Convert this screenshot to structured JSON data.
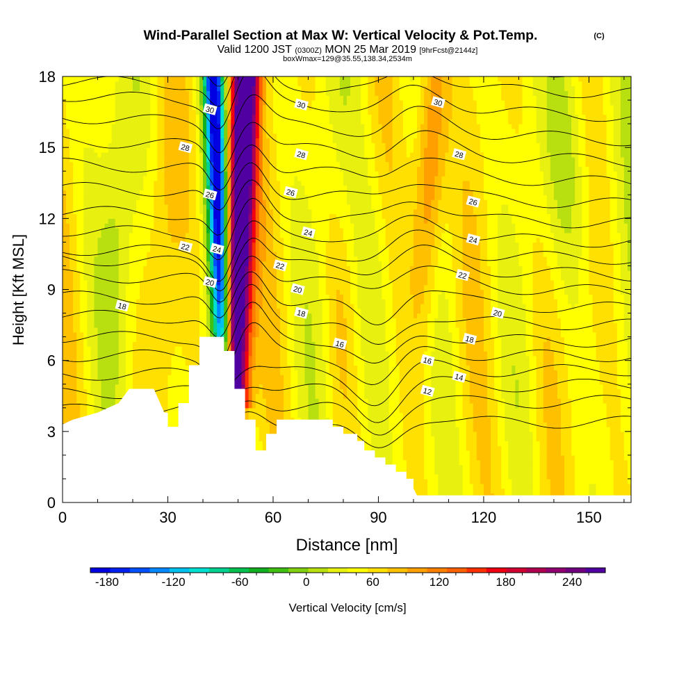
{
  "header": {
    "title": "Wind-Parallel Section at Max W: Vertical Velocity & Pot.Temp.",
    "copyright": "(C)",
    "valid_main": "Valid 1200 JST",
    "valid_utc": "(0300Z)",
    "valid_date": "MON 25 Mar 2019",
    "forecast": "[9hrFcst@2144z]",
    "box_info": "boxWmax=129@35.55,138.34,2534m"
  },
  "chart_data": {
    "type": "heatmap",
    "xlabel": "Distance [nm]",
    "ylabel": "Height [Kft MSL]",
    "xlim": [
      0,
      162
    ],
    "ylim": [
      0,
      18
    ],
    "x_ticks": [
      0,
      30,
      60,
      90,
      120,
      150
    ],
    "y_ticks": [
      0,
      3,
      6,
      9,
      12,
      15,
      18
    ],
    "colorbar": {
      "label": "Vertical Velocity [cm/s]",
      "ticks": [
        "-180",
        "-120",
        "-60",
        "0",
        "60",
        "120",
        "180",
        "240"
      ],
      "min": -195,
      "max": 270,
      "step": 15,
      "colors": [
        "#0000e0",
        "#0020f0",
        "#0050ff",
        "#0088ff",
        "#00c0f0",
        "#00e0d0",
        "#00d090",
        "#00c050",
        "#10b020",
        "#40c010",
        "#80d010",
        "#b8e010",
        "#e8f010",
        "#ffff00",
        "#ffe000",
        "#ffc000",
        "#ffa000",
        "#ff8000",
        "#ff6000",
        "#ff3000",
        "#f00010",
        "#d00030",
        "#b00050",
        "#900070",
        "#700080",
        "#5000a0"
      ]
    },
    "terrain_kft": [
      [
        0,
        3.3
      ],
      [
        3,
        3.5
      ],
      [
        10,
        3.8
      ],
      [
        16,
        4.2
      ],
      [
        19,
        4.8
      ],
      [
        26,
        4.8
      ],
      [
        29,
        3.8
      ],
      [
        30,
        3.8
      ],
      [
        30,
        3.2
      ],
      [
        33,
        3.2
      ],
      [
        33,
        3.6
      ],
      [
        33,
        4.2
      ],
      [
        36,
        4.2
      ],
      [
        36,
        5.8
      ],
      [
        39,
        5.8
      ],
      [
        39,
        7.0
      ],
      [
        46,
        7.0
      ],
      [
        46,
        6.4
      ],
      [
        49,
        6.4
      ],
      [
        49,
        4.8
      ],
      [
        52,
        4.8
      ],
      [
        52,
        3.5
      ],
      [
        55,
        3.5
      ],
      [
        55,
        2.2
      ],
      [
        58,
        2.2
      ],
      [
        58,
        2.9
      ],
      [
        61,
        2.9
      ],
      [
        61,
        3.5
      ],
      [
        77,
        3.5
      ],
      [
        77,
        3.2
      ],
      [
        80,
        3.2
      ],
      [
        80,
        2.9
      ],
      [
        84,
        2.9
      ],
      [
        84,
        2.6
      ],
      [
        86,
        2.6
      ],
      [
        86,
        2.2
      ],
      [
        89,
        2.2
      ],
      [
        89,
        1.9
      ],
      [
        92,
        1.9
      ],
      [
        92,
        1.6
      ],
      [
        95,
        1.6
      ],
      [
        95,
        1.3
      ],
      [
        98,
        1.3
      ],
      [
        98,
        1.0
      ],
      [
        100,
        1.0
      ],
      [
        100,
        0.6
      ],
      [
        101,
        0.3
      ],
      [
        162,
        0.3
      ]
    ],
    "updraft_band": [
      {
        "x_bottom": 50,
        "x_top": 52,
        "vmax": 250
      }
    ],
    "downdraft_band": [
      {
        "x_bottom": 42,
        "x_top": 43,
        "vmin": -190
      }
    ],
    "secondary_updraft": [
      {
        "x": 104,
        "vmax": 75
      }
    ],
    "isentrope_levels": [
      12,
      13,
      14,
      15,
      16,
      17,
      18,
      19,
      20,
      21,
      22,
      23,
      24,
      25,
      26,
      27,
      28,
      29,
      30,
      31
    ],
    "isentrope_heights_west_kft": [
      3.3,
      3.9,
      4.6,
      5.4,
      6.2,
      7.0,
      7.9,
      8.7,
      9.6,
      10.3,
      10.7,
      11.5,
      12.3,
      13.3,
      14.3,
      15.3,
      16.3,
      17.2,
      17.8,
      18.4
    ],
    "isentrope_heights_east_kft": [
      3.4,
      4.3,
      5.0,
      5.6,
      6.2,
      6.8,
      7.5,
      8.2,
      8.9,
      9.6,
      10.3,
      11.0,
      11.8,
      12.6,
      13.5,
      14.4,
      15.3,
      16.3,
      17.3,
      18.2
    ],
    "contour_labels": [
      {
        "text": "30",
        "x": 42,
        "y": 16.6
      },
      {
        "text": "30",
        "x": 68,
        "y": 16.8
      },
      {
        "text": "30",
        "x": 107,
        "y": 16.9
      },
      {
        "text": "28",
        "x": 35,
        "y": 15.0
      },
      {
        "text": "28",
        "x": 68,
        "y": 14.7
      },
      {
        "text": "28",
        "x": 113,
        "y": 14.7
      },
      {
        "text": "26",
        "x": 42,
        "y": 13.0
      },
      {
        "text": "26",
        "x": 65,
        "y": 13.1
      },
      {
        "text": "26",
        "x": 117,
        "y": 12.7
      },
      {
        "text": "24",
        "x": 44,
        "y": 10.7
      },
      {
        "text": "24",
        "x": 70,
        "y": 11.4
      },
      {
        "text": "24",
        "x": 117,
        "y": 11.1
      },
      {
        "text": "22",
        "x": 35,
        "y": 10.8
      },
      {
        "text": "22",
        "x": 62,
        "y": 10.0
      },
      {
        "text": "22",
        "x": 114,
        "y": 9.6
      },
      {
        "text": "20",
        "x": 42,
        "y": 9.3
      },
      {
        "text": "20",
        "x": 67,
        "y": 9.0
      },
      {
        "text": "20",
        "x": 124,
        "y": 8.0
      },
      {
        "text": "18",
        "x": 17,
        "y": 8.3
      },
      {
        "text": "18",
        "x": 68,
        "y": 8.0
      },
      {
        "text": "18",
        "x": 116,
        "y": 6.9
      },
      {
        "text": "16",
        "x": 79,
        "y": 6.7
      },
      {
        "text": "16",
        "x": 104,
        "y": 6.0
      },
      {
        "text": "14",
        "x": 113,
        "y": 5.3
      },
      {
        "text": "12",
        "x": 104,
        "y": 4.7
      }
    ]
  }
}
